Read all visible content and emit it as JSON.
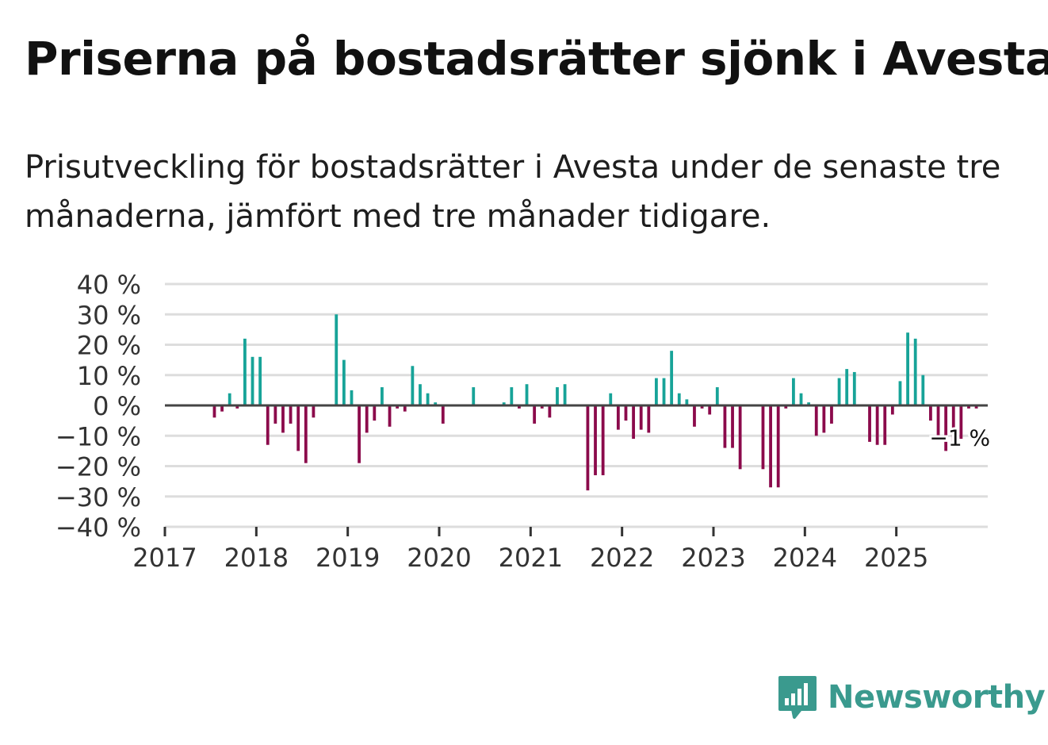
{
  "title": "Priserna på bostadsrätter sjönk i Avesta",
  "subtitle": "Prisutveckling för bostadsrätter i Avesta under de senaste tre månaderna, jämfört med tre månader tidigare.",
  "brand": {
    "name": "Newsworthy",
    "color": "#3a9a8e",
    "icon": "bar-chart-speech-bubble-icon"
  },
  "chart_data": {
    "type": "bar",
    "title": "Priserna på bostadsrätter sjönk i Avesta",
    "xlabel": "",
    "ylabel": "",
    "ylim": [
      -40,
      40
    ],
    "y_ticks": [
      40,
      30,
      20,
      10,
      0,
      -10,
      -20,
      -30,
      -40
    ],
    "y_tick_labels": [
      "40 %",
      "30 %",
      "20 %",
      "10 %",
      "0 %",
      "−10 %",
      "−20 %",
      "−30 %",
      "−40 %"
    ],
    "x_tick_labels": [
      "2017",
      "2018",
      "2019",
      "2020",
      "2021",
      "2022",
      "2023",
      "2024",
      "2025"
    ],
    "start": "2017-01",
    "grid": true,
    "positive_color": "#17a398",
    "negative_color": "#8b0a4b",
    "annotation": {
      "month_index": 104,
      "label": "−1 %"
    },
    "values": [
      null,
      null,
      null,
      null,
      null,
      null,
      -4,
      -2,
      4,
      -1,
      22,
      16,
      16,
      -13,
      -6,
      -9,
      -6,
      -15,
      -19,
      -4,
      null,
      null,
      30,
      15,
      5,
      -19,
      -9,
      -5,
      6,
      -7,
      -1,
      -2,
      13,
      7,
      4,
      1,
      -6,
      null,
      null,
      null,
      6,
      null,
      null,
      null,
      1,
      6,
      -1,
      7,
      -6,
      -1,
      -4,
      6,
      7,
      null,
      null,
      -28,
      -23,
      -23,
      4,
      -8,
      -5,
      -11,
      -8,
      -9,
      9,
      9,
      18,
      4,
      2,
      -7,
      -1,
      -3,
      6,
      -14,
      -14,
      -21,
      null,
      null,
      -21,
      -27,
      -27,
      -1,
      9,
      4,
      1,
      -10,
      -9,
      -6,
      9,
      12,
      11,
      null,
      -12,
      -13,
      -13,
      -3,
      8,
      24,
      22,
      10,
      -5,
      -11,
      -15,
      -13,
      -11,
      -1,
      -1,
      null
    ]
  }
}
